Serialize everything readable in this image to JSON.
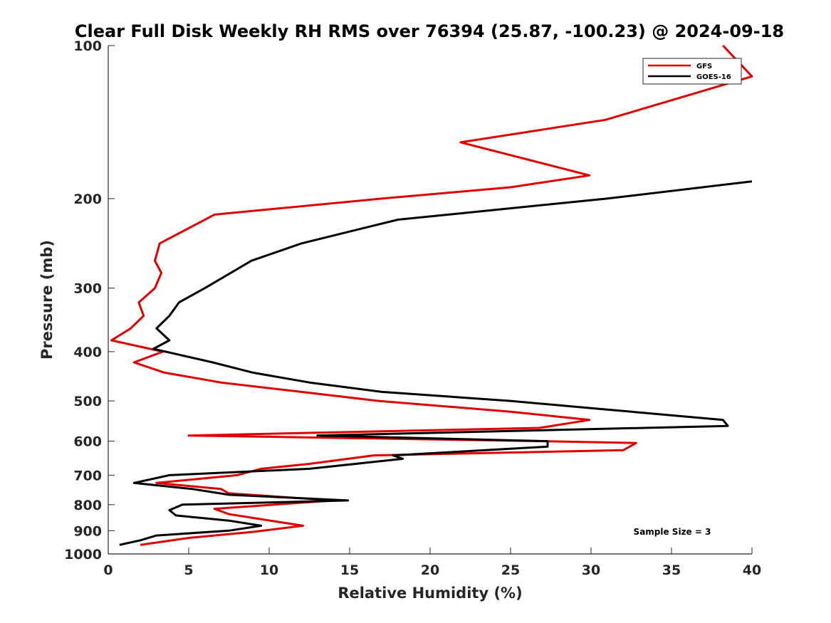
{
  "chart_data": {
    "type": "line",
    "title": "Clear Full Disk Weekly RH RMS over 76394 (25.87, -100.23) @ 2024-09-18",
    "xlabel": "Relative Humidity (%)",
    "ylabel": "Pressure (mb)",
    "xlim": [
      0,
      40
    ],
    "ylim": [
      100,
      1000
    ],
    "y_scale": "log",
    "y_reversed": true,
    "xticks": [
      0,
      5,
      10,
      15,
      20,
      25,
      30,
      35,
      40
    ],
    "yticks": [
      100,
      200,
      300,
      400,
      500,
      600,
      700,
      800,
      900,
      1000
    ],
    "grid": false,
    "legend_position": "top-right",
    "annotation": "Sample Size = 3",
    "series": [
      {
        "name": "GFS",
        "color": "#e00000",
        "points": [
          [
            38.2,
            100
          ],
          [
            40.0,
            115
          ],
          [
            30.9,
            140
          ],
          [
            21.9,
            155
          ],
          [
            29.9,
            180
          ],
          [
            25.0,
            190
          ],
          [
            17.0,
            200
          ],
          [
            6.6,
            215
          ],
          [
            3.2,
            245
          ],
          [
            2.9,
            265
          ],
          [
            3.3,
            280
          ],
          [
            2.9,
            300
          ],
          [
            1.9,
            320
          ],
          [
            2.2,
            340
          ],
          [
            1.4,
            360
          ],
          [
            0.2,
            380
          ],
          [
            3.4,
            400
          ],
          [
            1.6,
            420
          ],
          [
            3.5,
            440
          ],
          [
            7.0,
            460
          ],
          [
            12.0,
            480
          ],
          [
            16.8,
            500
          ],
          [
            25.0,
            525
          ],
          [
            29.9,
            545
          ],
          [
            26.8,
            565
          ],
          [
            5.0,
            585
          ],
          [
            27.0,
            600
          ],
          [
            32.8,
            605
          ],
          [
            32.0,
            625
          ],
          [
            16.5,
            640
          ],
          [
            12.5,
            665
          ],
          [
            9.5,
            680
          ],
          [
            8.0,
            700
          ],
          [
            3.0,
            725
          ],
          [
            7.0,
            745
          ],
          [
            7.5,
            760
          ],
          [
            14.0,
            785
          ],
          [
            6.6,
            815
          ],
          [
            7.5,
            835
          ],
          [
            12.1,
            880
          ],
          [
            9.0,
            905
          ],
          [
            5.0,
            930
          ],
          [
            2.0,
            960
          ]
        ]
      },
      {
        "name": "GOES-16",
        "color": "#000000",
        "points": [
          [
            40.0,
            185
          ],
          [
            31.0,
            200
          ],
          [
            18.0,
            220
          ],
          [
            12.0,
            245
          ],
          [
            8.9,
            265
          ],
          [
            7.2,
            285
          ],
          [
            6.0,
            300
          ],
          [
            4.4,
            320
          ],
          [
            3.8,
            340
          ],
          [
            3.0,
            360
          ],
          [
            3.8,
            380
          ],
          [
            2.8,
            395
          ],
          [
            6.5,
            420
          ],
          [
            9.0,
            440
          ],
          [
            12.5,
            460
          ],
          [
            17.0,
            480
          ],
          [
            25.0,
            500
          ],
          [
            31.0,
            520
          ],
          [
            38.2,
            545
          ],
          [
            38.5,
            560
          ],
          [
            13.0,
            585
          ],
          [
            27.3,
            600
          ],
          [
            27.3,
            615
          ],
          [
            17.7,
            640
          ],
          [
            18.3,
            650
          ],
          [
            12.5,
            680
          ],
          [
            3.8,
            700
          ],
          [
            1.6,
            725
          ],
          [
            5.2,
            745
          ],
          [
            7.5,
            765
          ],
          [
            14.9,
            785
          ],
          [
            4.6,
            800
          ],
          [
            3.8,
            820
          ],
          [
            4.2,
            840
          ],
          [
            7.5,
            860
          ],
          [
            9.5,
            880
          ],
          [
            7.5,
            900
          ],
          [
            3.0,
            920
          ],
          [
            2.0,
            940
          ],
          [
            0.7,
            960
          ]
        ]
      }
    ]
  }
}
